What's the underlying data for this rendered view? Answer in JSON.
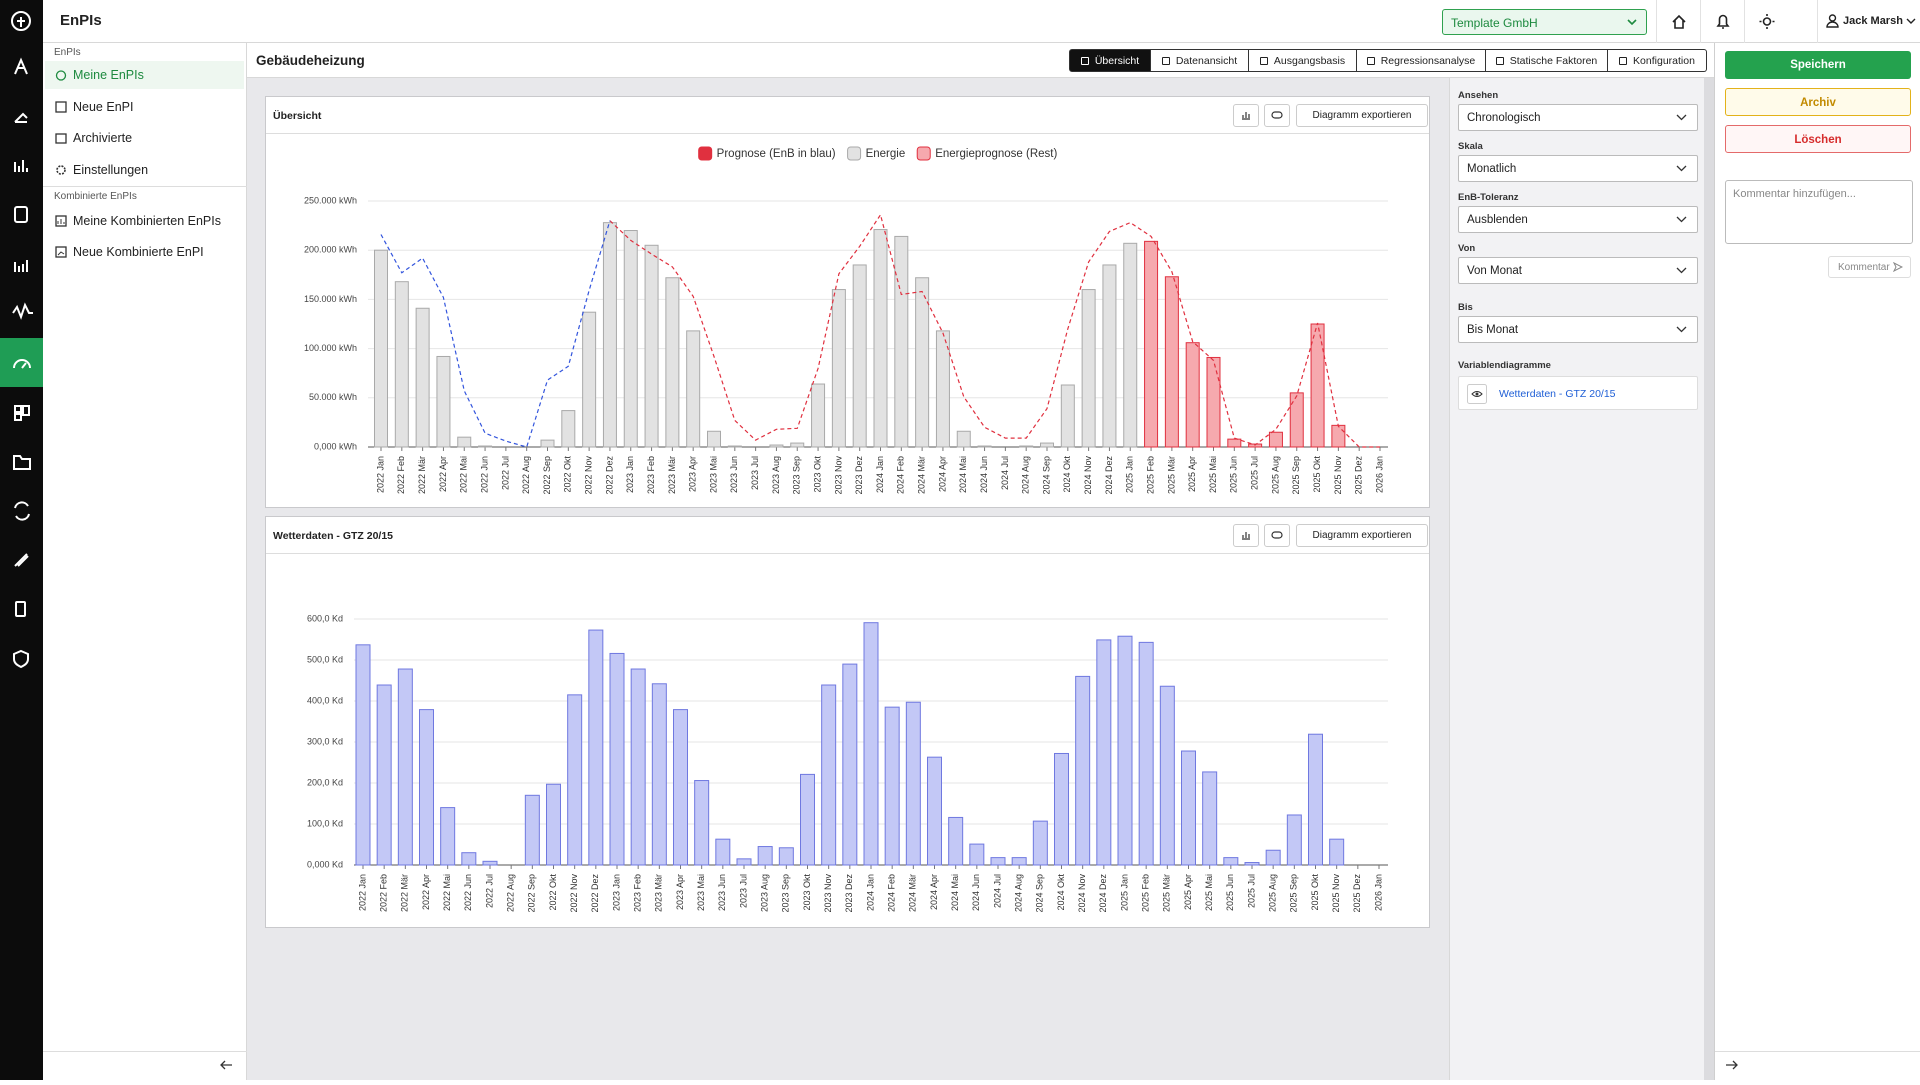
{
  "app": {
    "title": "EnPIs",
    "company": "Template GmbH",
    "user": "Jack Marsh"
  },
  "nav": {
    "sections": [
      {
        "title": "EnPIs",
        "items": [
          "Meine EnPIs",
          "Neue EnPI",
          "Archivierte",
          "Einstellungen"
        ]
      },
      {
        "title": "Kombinierte EnPIs",
        "items": [
          "Meine Kombinierten EnPIs",
          "Neue Kombinierte EnPI"
        ]
      }
    ]
  },
  "page": {
    "title": "Gebäudeheizung",
    "tabs": [
      "Übersicht",
      "Datenansicht",
      "Ausgangsbasis",
      "Regressionsanalyse",
      "Statische Faktoren",
      "Konfiguration"
    ]
  },
  "export_button": "Diagramm exportieren",
  "filters": [
    {
      "label": "Ansehen",
      "value": "Chronologisch"
    },
    {
      "label": "Skala",
      "value": "Monatlich"
    },
    {
      "label": "EnB-Toleranz",
      "value": "Ausblenden"
    },
    {
      "label": "Von",
      "value": "Von Monat"
    },
    {
      "label": "Bis",
      "value": "Bis Monat"
    }
  ],
  "variable_charts": {
    "label": "Variablendiagramme",
    "items": [
      "Wetterdaten - GTZ 20/15"
    ]
  },
  "actions": {
    "save": "Speichern",
    "archive": "Archiv",
    "delete": "Löschen",
    "comment_placeholder": "Kommentar hinzufügen...",
    "comment_button": "Kommentar"
  },
  "chart_data": [
    {
      "type": "bar",
      "title": "Übersicht",
      "legend": "top",
      "grid": true,
      "categories": [
        "2022 Jan",
        "2022 Feb",
        "2022 Mär",
        "2022 Apr",
        "2022 Mai",
        "2022 Jun",
        "2022 Jul",
        "2022 Aug",
        "2022 Sep",
        "2022 Okt",
        "2022 Nov",
        "2022 Dez",
        "2023 Jan",
        "2023 Feb",
        "2023 Mär",
        "2023 Apr",
        "2023 Mai",
        "2023 Jun",
        "2023 Jul",
        "2023 Aug",
        "2023 Sep",
        "2023 Okt",
        "2023 Nov",
        "2023 Dez",
        "2024 Jan",
        "2024 Feb",
        "2024 Mär",
        "2024 Apr",
        "2024 Mai",
        "2024 Jun",
        "2024 Jul",
        "2024 Aug",
        "2024 Sep",
        "2024 Okt",
        "2024 Nov",
        "2024 Dez",
        "2025 Jan",
        "2025 Feb",
        "2025 Mär",
        "2025 Apr",
        "2025 Mai",
        "2025 Jun",
        "2025 Jul",
        "2025 Aug",
        "2025 Sep",
        "2025 Okt",
        "2025 Nov",
        "2025 Dez",
        "2026 Jan"
      ],
      "ylim": [
        0,
        250000
      ],
      "yticks": [
        {
          "value": 0,
          "label": "0,000 kWh"
        },
        {
          "value": 50000,
          "label": "50.000 kWh"
        },
        {
          "value": 100000,
          "label": "100.000 kWh"
        },
        {
          "value": 150000,
          "label": "150.000 kWh"
        },
        {
          "value": 200000,
          "label": "200.000 kWh"
        },
        {
          "value": 250000,
          "label": "250.000 kWh"
        }
      ],
      "series": [
        {
          "name": "Prognose (EnB in blau)",
          "type": "line",
          "dashed": true,
          "color": "#e0303f",
          "fill": "#e0303f",
          "values": [
            null,
            null,
            null,
            null,
            null,
            null,
            null,
            null,
            null,
            null,
            null,
            230000,
            210000,
            196000,
            183000,
            153000,
            92000,
            27000,
            7000,
            18000,
            19000,
            80000,
            176000,
            204000,
            236000,
            155000,
            158000,
            116000,
            51000,
            20000,
            9000,
            9000,
            39000,
            120000,
            188000,
            219000,
            228000,
            214000,
            178000,
            107000,
            88000,
            9000,
            2000,
            18000,
            52000,
            126000,
            21000,
            0,
            0
          ]
        },
        {
          "name": "Energie",
          "type": "bar",
          "color": "#a9a9a9",
          "fill": "#e2e2e2",
          "values": [
            200000,
            168000,
            141000,
            92000,
            10000,
            1000,
            0,
            0,
            7000,
            37000,
            137000,
            228000,
            220000,
            205000,
            172000,
            118000,
            16000,
            1000,
            0,
            2000,
            4000,
            64000,
            160000,
            185000,
            221000,
            214000,
            172000,
            118000,
            16000,
            1000,
            0,
            1000,
            4000,
            63000,
            160000,
            185000,
            207000,
            null,
            null,
            null,
            null,
            null,
            null,
            null,
            null,
            null,
            null,
            null,
            null
          ]
        },
        {
          "name": "Energieprognose (Rest)",
          "type": "bar",
          "color": "#e0303f",
          "fill": "#f6a9ae",
          "values": [
            null,
            null,
            null,
            null,
            null,
            null,
            null,
            null,
            null,
            null,
            null,
            null,
            null,
            null,
            null,
            null,
            null,
            null,
            null,
            null,
            null,
            null,
            null,
            null,
            null,
            null,
            null,
            null,
            null,
            null,
            null,
            null,
            null,
            null,
            null,
            null,
            null,
            209000,
            173000,
            106000,
            91000,
            8000,
            3000,
            15000,
            55000,
            125000,
            22000,
            0,
            0
          ]
        },
        {
          "type": "line",
          "dashed": true,
          "color": "#3355dd",
          "values": [
            216000,
            177000,
            192000,
            152000,
            57000,
            14000,
            6000,
            0,
            68000,
            82000,
            159000,
            230000,
            null,
            null,
            null,
            null,
            null,
            null,
            null,
            null,
            null,
            null,
            null,
            null,
            null,
            null,
            null,
            null,
            null,
            null,
            null,
            null,
            null,
            null,
            null,
            null,
            null,
            null,
            null,
            null,
            null,
            null,
            null,
            null,
            null,
            null,
            null,
            null,
            null
          ]
        }
      ]
    },
    {
      "type": "bar",
      "title": "Wetterdaten - GTZ 20/15",
      "grid": true,
      "categories": [
        "2022 Jan",
        "2022 Feb",
        "2022 Mär",
        "2022 Apr",
        "2022 Mai",
        "2022 Jun",
        "2022 Jul",
        "2022 Aug",
        "2022 Sep",
        "2022 Okt",
        "2022 Nov",
        "2022 Dez",
        "2023 Jan",
        "2023 Feb",
        "2023 Mär",
        "2023 Apr",
        "2023 Mai",
        "2023 Jun",
        "2023 Jul",
        "2023 Aug",
        "2023 Sep",
        "2023 Okt",
        "2023 Nov",
        "2023 Dez",
        "2024 Jan",
        "2024 Feb",
        "2024 Mär",
        "2024 Apr",
        "2024 Mai",
        "2024 Jun",
        "2024 Jul",
        "2024 Aug",
        "2024 Sep",
        "2024 Okt",
        "2024 Nov",
        "2024 Dez",
        "2025 Jan",
        "2025 Feb",
        "2025 Mär",
        "2025 Apr",
        "2025 Mai",
        "2025 Jun",
        "2025 Jul",
        "2025 Aug",
        "2025 Sep",
        "2025 Okt",
        "2025 Nov",
        "2025 Dez",
        "2026 Jan"
      ],
      "ylim": [
        0,
        600
      ],
      "yticks": [
        {
          "value": 0,
          "label": "0,000 Kd"
        },
        {
          "value": 100,
          "label": "100,0 Kd"
        },
        {
          "value": 200,
          "label": "200,0 Kd"
        },
        {
          "value": 300,
          "label": "300,0 Kd"
        },
        {
          "value": 400,
          "label": "400,0 Kd"
        },
        {
          "value": 500,
          "label": "500,0 Kd"
        },
        {
          "value": 600,
          "label": "600,0 Kd"
        }
      ],
      "series": [
        {
          "type": "bar",
          "color": "#6f78e0",
          "fill": "#c3c8f6",
          "values": [
            537,
            439,
            478,
            379,
            140,
            30,
            9,
            0,
            170,
            197,
            415,
            573,
            516,
            478,
            442,
            379,
            206,
            63,
            15,
            45,
            42,
            221,
            439,
            490,
            591,
            385,
            397,
            263,
            116,
            51,
            18,
            18,
            107,
            272,
            460,
            549,
            558,
            543,
            436,
            278,
            227,
            18,
            6,
            36,
            122,
            319,
            63,
            null,
            null
          ]
        }
      ]
    }
  ]
}
